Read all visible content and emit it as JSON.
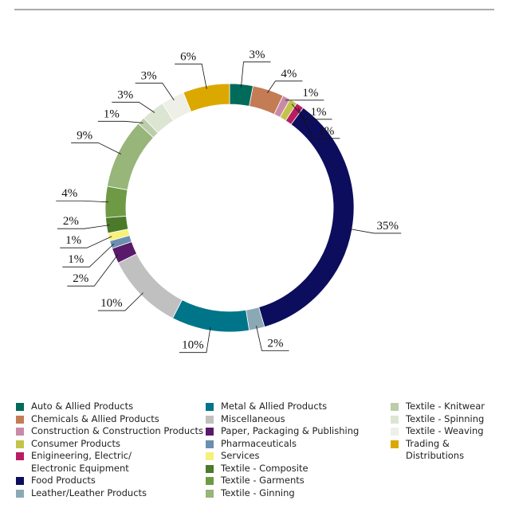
{
  "chart_data": {
    "type": "donut",
    "categories": [
      "Auto & Allied Products",
      "Chemicals & Allied Products",
      "Construction & Construction Products",
      "Consumer Products",
      "Enigineering, Electric/\nElectronic Equipment",
      "Food Products",
      "Leather/Leather Products",
      "Metal & Allied Products",
      "Miscellaneous",
      "Paper, Packaging & Publishing",
      "Pharmaceuticals",
      "Services",
      "Textile - Composite",
      "Textile - Garments",
      "Textile - Ginning",
      "Textile - Knitwear",
      "Textile - Spinning",
      "Textile - Weaving",
      "Trading & Distributions"
    ],
    "values": [
      3,
      4,
      1,
      1,
      1,
      35,
      2,
      10,
      10,
      2,
      1,
      1,
      2,
      4,
      9,
      1,
      3,
      3,
      6
    ],
    "value_labels": [
      "3%",
      "4%",
      "1%",
      "1%",
      "1%",
      "35%",
      "2%",
      "10%",
      "10%",
      "2%",
      "1%",
      "1%",
      "2%",
      "4%",
      "9%",
      "1%",
      "3%",
      "3%",
      "6%"
    ],
    "colors": [
      "#006b5a",
      "#c47c55",
      "#c98aa8",
      "#c2c44a",
      "#b81d62",
      "#0d0d5e",
      "#8aa9b5",
      "#00758a",
      "#c0c0c0",
      "#5a1a6b",
      "#6a8fb0",
      "#f7f07a",
      "#4a7a2a",
      "#6f9a45",
      "#98b57a",
      "#bccdab",
      "#dce5d2",
      "#eef0e8",
      "#dba800"
    ]
  }
}
